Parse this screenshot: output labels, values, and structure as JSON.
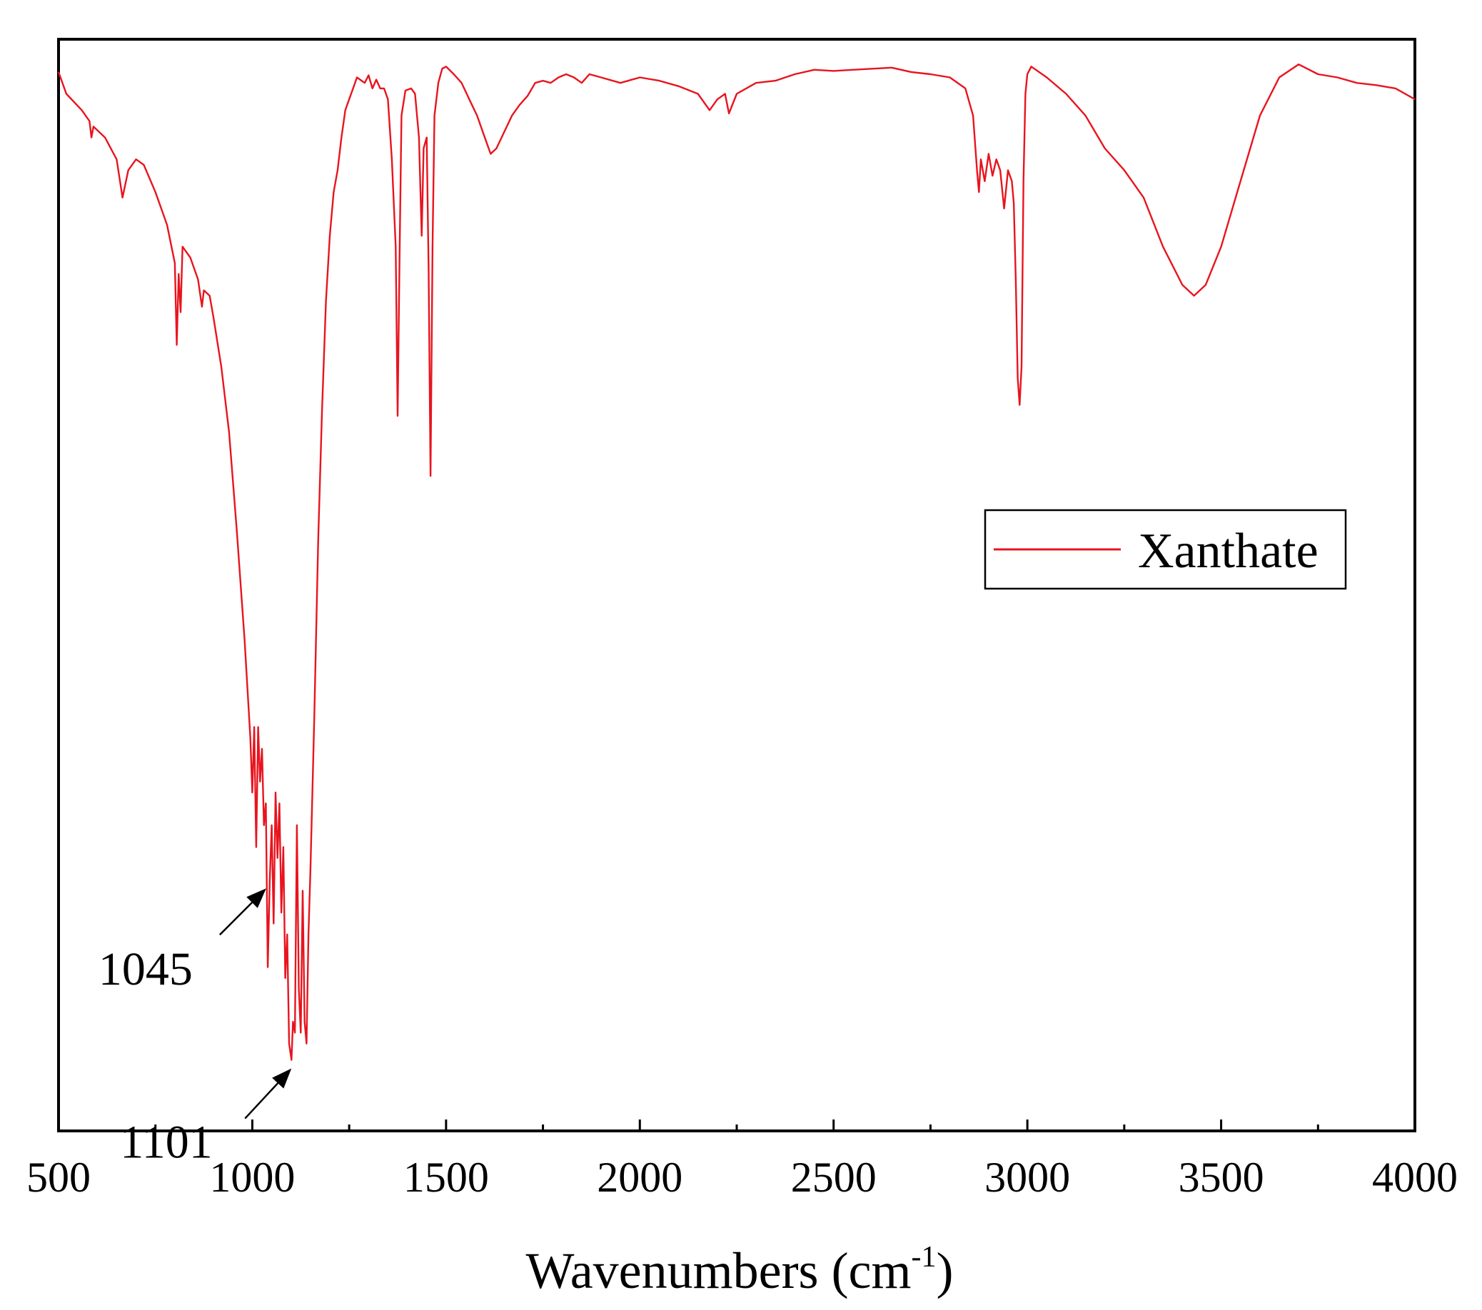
{
  "chart_data": {
    "type": "line",
    "title": "",
    "xlabel": "Wavenumbers (cm",
    "xlabel_superscript": "-1",
    "xlabel_suffix": ")",
    "ylabel": "",
    "xlim": [
      500,
      4000
    ],
    "ylim": [
      0,
      100
    ],
    "x_ticks": [
      500,
      1000,
      1500,
      2000,
      2500,
      3000,
      3500,
      4000
    ],
    "x_tick_labels": [
      "500",
      "1000",
      "1500",
      "2000",
      "2500",
      "3000",
      "3500",
      "4000"
    ],
    "x_minor_ticks": [
      750,
      1250,
      1750,
      2250,
      2750,
      3250,
      3750
    ],
    "grid": false,
    "legend": {
      "position": "center-right",
      "entries": [
        "Xanthate"
      ]
    },
    "series": [
      {
        "name": "Xanthate",
        "color": "#e8141e",
        "points": [
          [
            500,
            97
          ],
          [
            520,
            95
          ],
          [
            560,
            93.5
          ],
          [
            580,
            92.5
          ],
          [
            585,
            91
          ],
          [
            590,
            92
          ],
          [
            620,
            91
          ],
          [
            650,
            89
          ],
          [
            665,
            85.5
          ],
          [
            680,
            88
          ],
          [
            700,
            89
          ],
          [
            720,
            88.5
          ],
          [
            750,
            86
          ],
          [
            780,
            83
          ],
          [
            800,
            79.5
          ],
          [
            805,
            72
          ],
          [
            810,
            78.5
          ],
          [
            815,
            75
          ],
          [
            820,
            81
          ],
          [
            840,
            80
          ],
          [
            860,
            78
          ],
          [
            870,
            75.5
          ],
          [
            875,
            77
          ],
          [
            890,
            76.5
          ],
          [
            900,
            74.5
          ],
          [
            920,
            70
          ],
          [
            940,
            64
          ],
          [
            960,
            55
          ],
          [
            980,
            45
          ],
          [
            995,
            36
          ],
          [
            1000,
            31
          ],
          [
            1005,
            37
          ],
          [
            1010,
            26
          ],
          [
            1015,
            37
          ],
          [
            1020,
            32
          ],
          [
            1025,
            35
          ],
          [
            1030,
            28
          ],
          [
            1035,
            30
          ],
          [
            1040,
            15
          ],
          [
            1045,
            23
          ],
          [
            1050,
            28
          ],
          [
            1055,
            19
          ],
          [
            1060,
            31
          ],
          [
            1065,
            25
          ],
          [
            1070,
            30
          ],
          [
            1075,
            20
          ],
          [
            1080,
            26
          ],
          [
            1085,
            14
          ],
          [
            1090,
            18
          ],
          [
            1095,
            8
          ],
          [
            1101,
            6.5
          ],
          [
            1105,
            10
          ],
          [
            1110,
            9
          ],
          [
            1115,
            28
          ],
          [
            1120,
            13
          ],
          [
            1125,
            9
          ],
          [
            1130,
            22
          ],
          [
            1135,
            10
          ],
          [
            1140,
            8
          ],
          [
            1145,
            18
          ],
          [
            1150,
            24
          ],
          [
            1160,
            38
          ],
          [
            1170,
            54
          ],
          [
            1180,
            66
          ],
          [
            1190,
            76
          ],
          [
            1200,
            82
          ],
          [
            1210,
            86
          ],
          [
            1220,
            88
          ],
          [
            1230,
            91
          ],
          [
            1240,
            93.5
          ],
          [
            1250,
            94.5
          ],
          [
            1260,
            95.5
          ],
          [
            1270,
            96.5
          ],
          [
            1290,
            96
          ],
          [
            1300,
            96.7
          ],
          [
            1310,
            95.5
          ],
          [
            1320,
            96.3
          ],
          [
            1330,
            95.5
          ],
          [
            1340,
            95.5
          ],
          [
            1350,
            94.5
          ],
          [
            1360,
            89
          ],
          [
            1370,
            81
          ],
          [
            1375,
            65.5
          ],
          [
            1380,
            80
          ],
          [
            1385,
            93
          ],
          [
            1395,
            95.3
          ],
          [
            1410,
            95.5
          ],
          [
            1420,
            95
          ],
          [
            1430,
            91
          ],
          [
            1437,
            82
          ],
          [
            1442,
            90
          ],
          [
            1450,
            91
          ],
          [
            1455,
            79
          ],
          [
            1460,
            60
          ],
          [
            1465,
            81
          ],
          [
            1470,
            93
          ],
          [
            1480,
            96
          ],
          [
            1490,
            97.3
          ],
          [
            1500,
            97.5
          ],
          [
            1520,
            96.8
          ],
          [
            1540,
            96
          ],
          [
            1560,
            94.5
          ],
          [
            1580,
            93
          ],
          [
            1600,
            91
          ],
          [
            1615,
            89.5
          ],
          [
            1630,
            90
          ],
          [
            1650,
            91.5
          ],
          [
            1670,
            93
          ],
          [
            1690,
            94
          ],
          [
            1710,
            94.8
          ],
          [
            1730,
            96
          ],
          [
            1750,
            96.2
          ],
          [
            1770,
            96
          ],
          [
            1790,
            96.5
          ],
          [
            1810,
            96.8
          ],
          [
            1830,
            96.5
          ],
          [
            1850,
            96
          ],
          [
            1870,
            96.8
          ],
          [
            1900,
            96.5
          ],
          [
            1950,
            96
          ],
          [
            2000,
            96.5
          ],
          [
            2050,
            96.2
          ],
          [
            2100,
            95.7
          ],
          [
            2150,
            95
          ],
          [
            2180,
            93.5
          ],
          [
            2200,
            94.5
          ],
          [
            2220,
            95
          ],
          [
            2230,
            93.2
          ],
          [
            2250,
            95
          ],
          [
            2300,
            96
          ],
          [
            2350,
            96.2
          ],
          [
            2400,
            96.8
          ],
          [
            2450,
            97.2
          ],
          [
            2500,
            97.1
          ],
          [
            2550,
            97.2
          ],
          [
            2600,
            97.3
          ],
          [
            2650,
            97.4
          ],
          [
            2700,
            97
          ],
          [
            2750,
            96.8
          ],
          [
            2800,
            96.5
          ],
          [
            2840,
            95.5
          ],
          [
            2860,
            93
          ],
          [
            2870,
            88
          ],
          [
            2875,
            86
          ],
          [
            2880,
            89
          ],
          [
            2890,
            87
          ],
          [
            2900,
            89.5
          ],
          [
            2910,
            87.5
          ],
          [
            2920,
            89
          ],
          [
            2930,
            88
          ],
          [
            2940,
            84.5
          ],
          [
            2950,
            88
          ],
          [
            2960,
            87
          ],
          [
            2965,
            85
          ],
          [
            2970,
            78
          ],
          [
            2975,
            69
          ],
          [
            2980,
            66.5
          ],
          [
            2985,
            70
          ],
          [
            2990,
            87
          ],
          [
            2995,
            95
          ],
          [
            3000,
            96.8
          ],
          [
            3010,
            97.5
          ],
          [
            3050,
            96.5
          ],
          [
            3100,
            95
          ],
          [
            3150,
            93
          ],
          [
            3200,
            90
          ],
          [
            3250,
            88
          ],
          [
            3300,
            85.5
          ],
          [
            3350,
            81
          ],
          [
            3400,
            77.5
          ],
          [
            3430,
            76.5
          ],
          [
            3460,
            77.5
          ],
          [
            3500,
            81
          ],
          [
            3550,
            87
          ],
          [
            3600,
            93
          ],
          [
            3650,
            96.5
          ],
          [
            3700,
            97.7
          ],
          [
            3750,
            96.8
          ],
          [
            3800,
            96.5
          ],
          [
            3850,
            96
          ],
          [
            3900,
            95.8
          ],
          [
            3950,
            95.5
          ],
          [
            4000,
            94.5
          ]
        ]
      }
    ],
    "annotations": [
      {
        "label": "1045",
        "x": 1045,
        "y": 23
      },
      {
        "label": "1101",
        "x": 1101,
        "y": 6.5
      }
    ]
  }
}
